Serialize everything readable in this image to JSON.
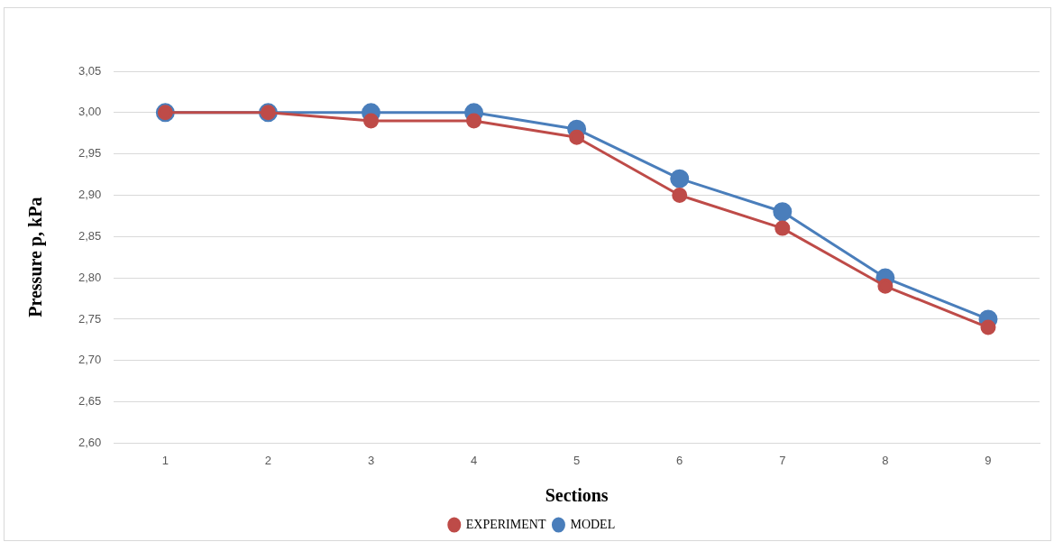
{
  "chart_data": {
    "type": "line",
    "xlabel": "Sections",
    "ylabel": "Pressure p, kPa",
    "categories": [
      "1",
      "2",
      "3",
      "4",
      "5",
      "6",
      "7",
      "8",
      "9"
    ],
    "series": [
      {
        "name": "MODEL",
        "color": "#4a7ebb",
        "values": [
          3.0,
          3.0,
          3.0,
          3.0,
          2.98,
          2.92,
          2.88,
          2.8,
          2.75
        ]
      },
      {
        "name": "EXPERIMENT",
        "color": "#be4b48",
        "values": [
          3.0,
          3.0,
          2.99,
          2.99,
          2.97,
          2.9,
          2.86,
          2.79,
          2.74
        ]
      }
    ],
    "ylim": [
      2.6,
      3.05
    ],
    "yticks": [
      {
        "value": 2.6,
        "label": "2,60"
      },
      {
        "value": 2.65,
        "label": "2,65"
      },
      {
        "value": 2.7,
        "label": "2,70"
      },
      {
        "value": 2.75,
        "label": "2,75"
      },
      {
        "value": 2.8,
        "label": "2,80"
      },
      {
        "value": 2.85,
        "label": "2,85"
      },
      {
        "value": 2.9,
        "label": "2,90"
      },
      {
        "value": 2.95,
        "label": "2,95"
      },
      {
        "value": 3.0,
        "label": "3,00"
      },
      {
        "value": 3.05,
        "label": "3,05"
      }
    ],
    "grid": "y",
    "legend": "bottom",
    "marker": "circle",
    "line_style": "solid"
  }
}
